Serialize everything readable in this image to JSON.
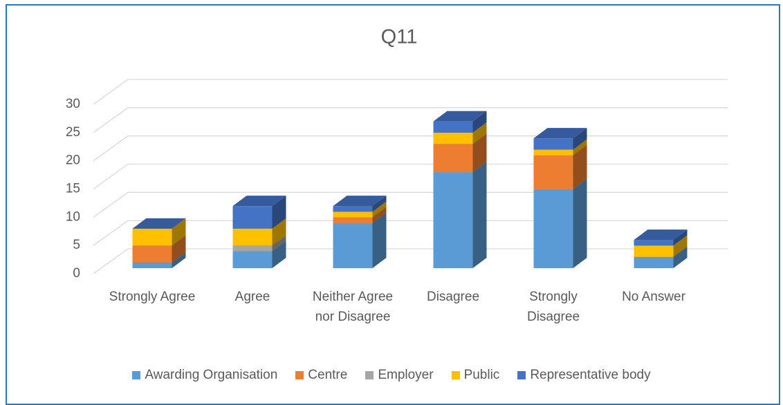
{
  "chart_data": {
    "type": "bar3d_stacked",
    "title": "Q11",
    "categories": [
      "Strongly Agree",
      "Agree",
      "Neither Agree nor Disagree",
      "Disagree",
      "Strongly Disagree",
      "No Answer"
    ],
    "series": [
      {
        "name": "Awarding Organisation",
        "color": "#5b9bd5",
        "values": [
          1,
          3,
          8,
          17,
          14,
          2
        ]
      },
      {
        "name": "Centre",
        "color": "#ed7d31",
        "values": [
          3,
          0,
          1,
          5,
          6,
          0
        ]
      },
      {
        "name": "Employer",
        "color": "#a5a5a5",
        "values": [
          0,
          1,
          0,
          0,
          0,
          0
        ]
      },
      {
        "name": "Public",
        "color": "#ffc000",
        "values": [
          3,
          3,
          1,
          2,
          1,
          2
        ]
      },
      {
        "name": "Representative body",
        "color": "#4472c4",
        "values": [
          0,
          4,
          1,
          2,
          2,
          1
        ]
      }
    ],
    "ylim": [
      0,
      30
    ],
    "yticks": [
      0,
      5,
      10,
      15,
      20,
      25,
      30
    ],
    "grid": true,
    "legend": "bottom"
  }
}
